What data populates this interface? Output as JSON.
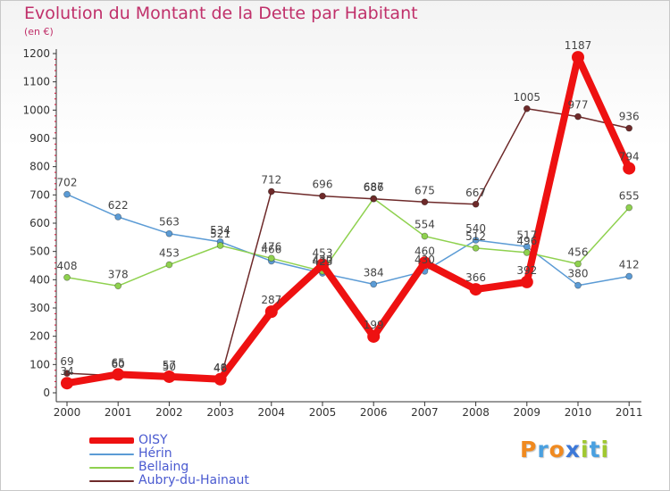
{
  "title": "Evolution du Montant de la Dette par Habitant",
  "subtitle": "(en €)",
  "logo": {
    "text": "Proxiti",
    "letter_colors": [
      "#f08a20",
      "#4aa0e0",
      "#f08a20",
      "#3c78d8",
      "#a0c830",
      "#4aa0e0",
      "#a0c830"
    ]
  },
  "chart_data": {
    "type": "line",
    "x": [
      "2000",
      "2001",
      "2002",
      "2003",
      "2004",
      "2005",
      "2006",
      "2007",
      "2008",
      "2009",
      "2010",
      "2011"
    ],
    "ylim": [
      0,
      1200
    ],
    "yticks": [
      "0",
      "100",
      "200",
      "300",
      "400",
      "500",
      "600",
      "700",
      "800",
      "900",
      "1000",
      "1100",
      "1200"
    ],
    "grid": false,
    "series": [
      {
        "name": "Hérin",
        "color": "#5b9bd5",
        "values": [
          702,
          622,
          563,
          534,
          466,
          423,
          384,
          430,
          540,
          517,
          380,
          412
        ],
        "labels": [
          "702",
          "622",
          "563",
          "534",
          "466",
          "423",
          "384",
          "430",
          "540",
          "517",
          "380",
          "412"
        ]
      },
      {
        "name": "Bellaing",
        "color": "#8fd14f",
        "values": [
          408,
          378,
          453,
          521,
          476,
          430,
          687,
          554,
          512,
          496,
          456,
          655
        ],
        "labels": [
          "408",
          "378",
          "453",
          "521",
          "476",
          "430",
          "687",
          "554",
          "512",
          "496",
          "456",
          "655"
        ]
      },
      {
        "name": "Aubry-du-Hainaut",
        "color": "#6e2a2a",
        "values": [
          69,
          60,
          50,
          46,
          712,
          696,
          686,
          675,
          667,
          1005,
          977,
          936
        ],
        "labels": [
          "69",
          "60",
          "50",
          "46",
          "712",
          "696",
          "686",
          "675",
          "667",
          "1005",
          "977",
          "936"
        ]
      },
      {
        "name": "OISY",
        "color": "#ee1111",
        "values": [
          34,
          65,
          57,
          48,
          287,
          453,
          199,
          460,
          366,
          392,
          1187,
          794
        ],
        "labels": [
          "34",
          "65",
          "57",
          "48",
          "287",
          "453",
          "199",
          "460",
          "366",
          "392",
          "1187",
          "794"
        ]
      }
    ]
  },
  "legend": [
    {
      "name": "OISY",
      "color": "#ee1111"
    },
    {
      "name": "Hérin",
      "color": "#5b9bd5"
    },
    {
      "name": "Bellaing",
      "color": "#8fd14f"
    },
    {
      "name": "Aubry-du-Hainaut",
      "color": "#6e2a2a"
    }
  ]
}
